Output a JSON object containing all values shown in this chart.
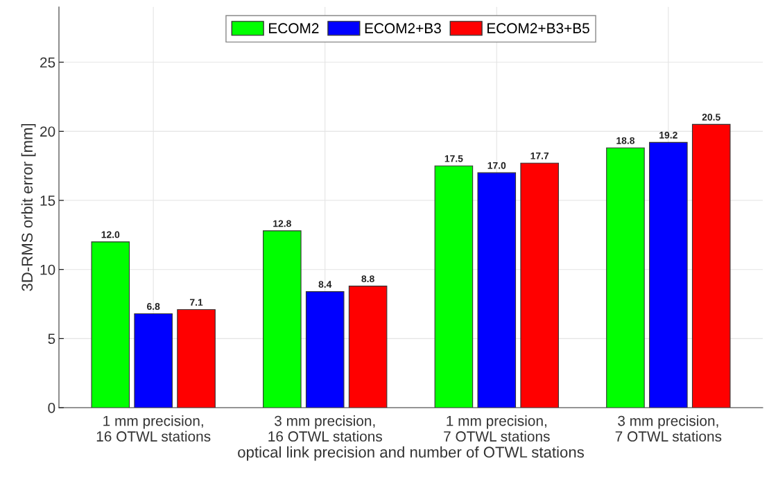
{
  "chart_data": {
    "type": "bar",
    "xlabel": "optical link precision and number of OTWL stations",
    "ylabel": "3D-RMS orbit error [mm]",
    "categories": [
      "1 mm precision,\n16 OTWL stations",
      "3 mm precision,\n16 OTWL stations",
      "1 mm precision,\n7 OTWL stations",
      "3 mm precision,\n7 OTWL stations"
    ],
    "series": [
      {
        "name": "ECOM2",
        "color": "#00ff00",
        "values": [
          12.0,
          12.8,
          17.5,
          18.8
        ]
      },
      {
        "name": "ECOM2+B3",
        "color": "#0000ff",
        "values": [
          6.8,
          8.4,
          17.0,
          19.2
        ]
      },
      {
        "name": "ECOM2+B3+B5",
        "color": "#ff0000",
        "values": [
          7.1,
          8.8,
          17.7,
          20.5
        ]
      }
    ],
    "value_labels": [
      [
        "12.0",
        "12.8",
        "17.5",
        "18.8"
      ],
      [
        "6.8",
        "8.4",
        "17.0",
        "19.2"
      ],
      [
        "7.1",
        "8.8",
        "17.7",
        "20.5"
      ]
    ],
    "ylim": [
      0,
      29
    ],
    "yticks": [
      0,
      5,
      10,
      15,
      20,
      25
    ],
    "grid": true,
    "legend": "top"
  }
}
